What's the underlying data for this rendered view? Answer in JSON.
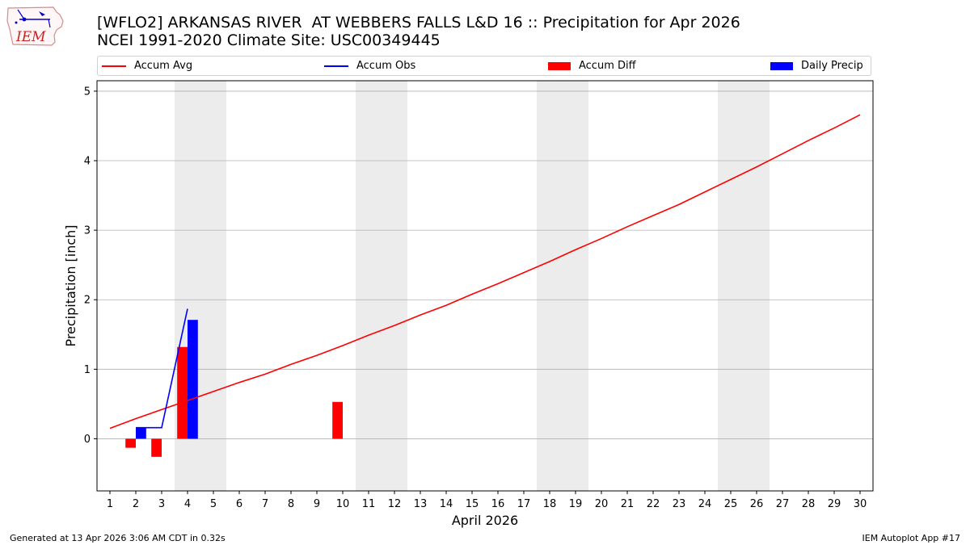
{
  "header": {
    "title": "[WFLO2] ARKANSAS RIVER  AT WEBBERS FALLS L&D 16 :: Precipitation for Apr 2026",
    "subtitle": "NCEI 1991-2020 Climate Site: USC00349445"
  },
  "logo": {
    "text": "IEM",
    "icon": "iowa-state-outline-icon"
  },
  "footer": {
    "generated": "Generated at 13 Apr 2026 3:06 AM CDT in 0.32s",
    "app": "IEM Autoplot App #17"
  },
  "colors": {
    "avg": "#ff0000",
    "obs": "#0000ff",
    "diff": "#ff0000",
    "daily": "#0000ff",
    "weekend": "#ececec",
    "grid": "#b0b0b0"
  },
  "chart_data": {
    "type": "bar",
    "xlabel": "April 2026",
    "ylabel": "Precipitation [inch]",
    "xlim": [
      0.5,
      30.5
    ],
    "ylim": [
      -0.75,
      5.15
    ],
    "yticks": [
      0,
      1,
      2,
      3,
      4,
      5
    ],
    "xticks": [
      1,
      2,
      3,
      4,
      5,
      6,
      7,
      8,
      9,
      10,
      11,
      12,
      13,
      14,
      15,
      16,
      17,
      18,
      19,
      20,
      21,
      22,
      23,
      24,
      25,
      26,
      27,
      28,
      29,
      30
    ],
    "weekend_bands": [
      [
        3.5,
        5.5
      ],
      [
        10.5,
        12.5
      ],
      [
        17.5,
        19.5
      ],
      [
        24.5,
        26.5
      ]
    ],
    "grid": "horizontal",
    "legend": [
      "Accum Avg",
      "Accum Obs",
      "Accum Diff",
      "Daily Precip"
    ],
    "legend_placement": "top",
    "series": [
      {
        "name": "Accum Avg",
        "type": "line",
        "x": [
          1,
          2,
          3,
          4,
          5,
          6,
          7,
          8,
          9,
          10,
          11,
          12,
          13,
          14,
          15,
          16,
          17,
          18,
          19,
          20,
          21,
          22,
          23,
          24,
          25,
          26,
          27,
          28,
          29,
          30
        ],
        "values": [
          0.15,
          0.29,
          0.42,
          0.55,
          0.68,
          0.81,
          0.93,
          1.07,
          1.2,
          1.34,
          1.49,
          1.63,
          1.78,
          1.92,
          2.08,
          2.23,
          2.39,
          2.55,
          2.72,
          2.88,
          3.05,
          3.21,
          3.37,
          3.55,
          3.73,
          3.91,
          4.1,
          4.29,
          4.47,
          4.66
        ]
      },
      {
        "name": "Accum Obs",
        "type": "line",
        "x": [
          2,
          3,
          4
        ],
        "values": [
          0.16,
          0.16,
          1.87
        ]
      },
      {
        "name": "Accum Diff",
        "type": "bar",
        "x": [
          1,
          2,
          3,
          4,
          10
        ],
        "values": [
          0.0,
          -0.13,
          -0.26,
          1.32,
          0.53
        ]
      },
      {
        "name": "Daily Precip",
        "type": "bar",
        "x": [
          2,
          4
        ],
        "values": [
          0.16,
          1.71
        ]
      }
    ]
  }
}
